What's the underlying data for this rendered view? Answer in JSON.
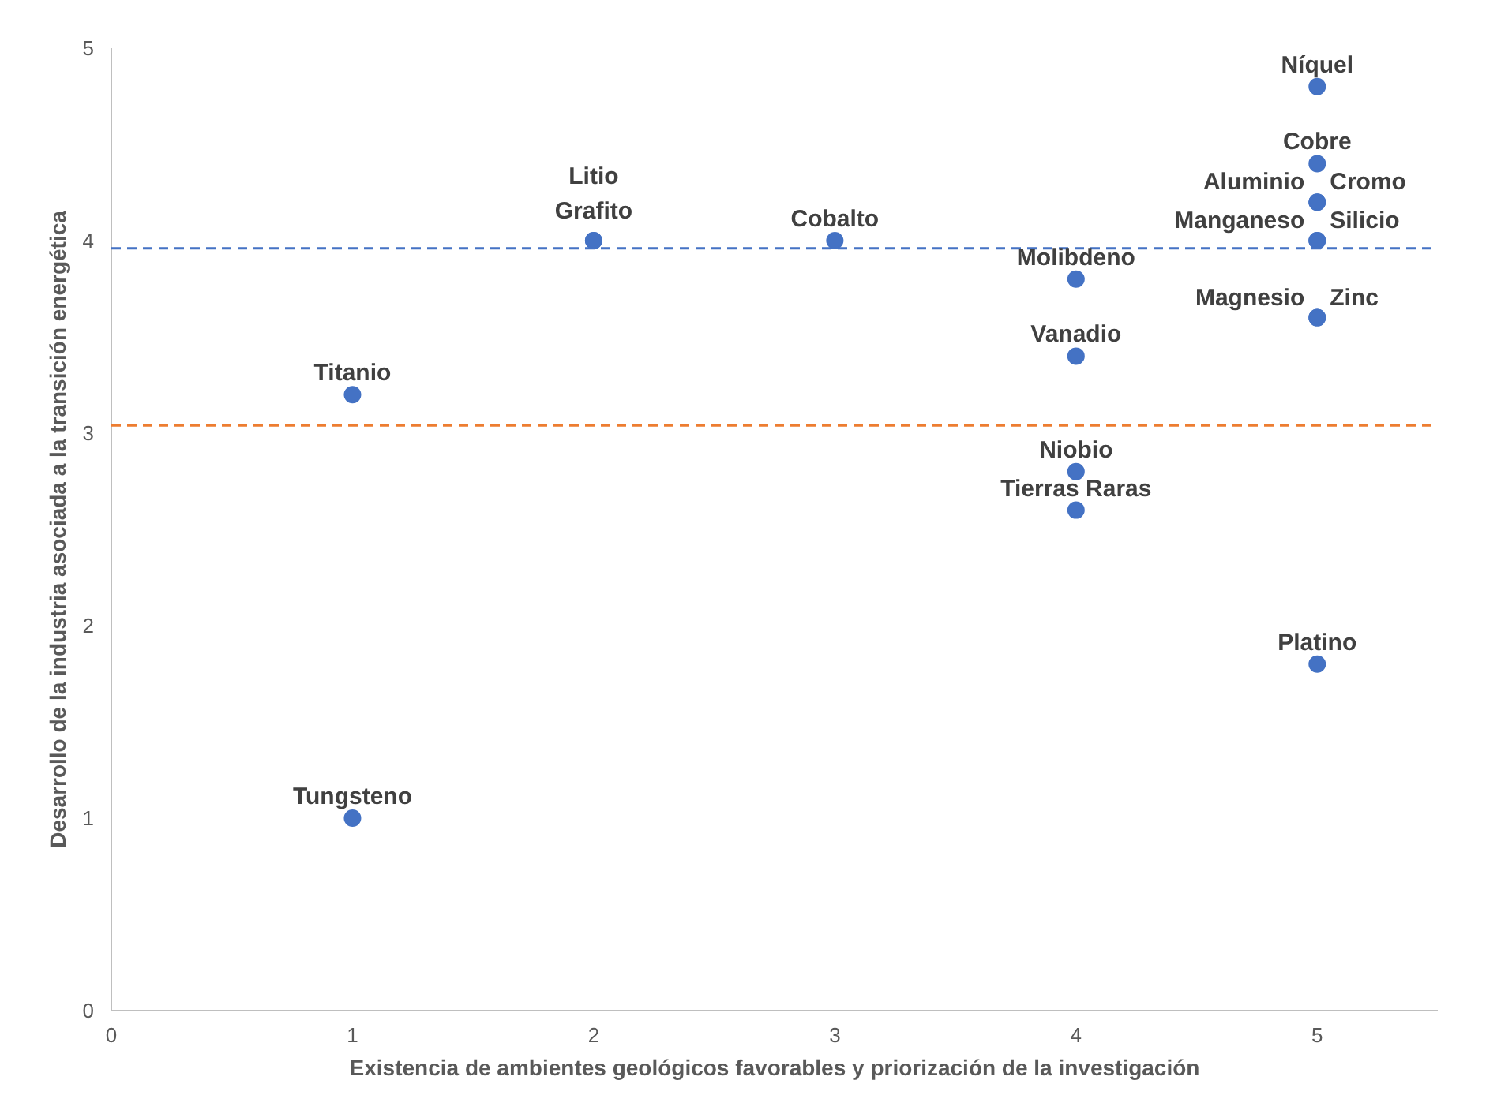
{
  "chart_data": {
    "type": "scatter",
    "xlabel": "Existencia de ambientes geológicos favorables y priorización de la investigación",
    "ylabel": "Desarrollo de la industria asociada a la transición energética",
    "series": [
      {
        "color": "#4472c4",
        "x": [
          1,
          1,
          2,
          2,
          3,
          4,
          4,
          4,
          4,
          5,
          5,
          5,
          5,
          5,
          5,
          5,
          5,
          5
        ],
        "values": [
          3.2,
          1,
          4,
          4,
          4,
          3.8,
          3.4,
          2.8,
          2.6,
          4.8,
          4.4,
          4.2,
          4.2,
          4.0,
          4.0,
          3.6,
          3.6,
          1.8
        ],
        "value_labels": [
          "Titanio",
          "Tungsteno",
          "Litio",
          "Grafito",
          "Cobalto",
          "Molibdeno",
          "Vanadio",
          "Niobio",
          "Tierras Raras",
          "Níquel",
          "Cobre",
          "Aluminio",
          "Cromo",
          "Manganeso",
          "Silicio",
          "Magnesio",
          "Zinc",
          "Platino"
        ]
      }
    ],
    "marker": "circle",
    "xlim": [
      0,
      5.5
    ],
    "ylim": [
      0,
      5
    ],
    "xticks": [
      0,
      1,
      2,
      3,
      4,
      5
    ],
    "yticks": [
      0,
      1,
      2,
      3,
      4,
      5
    ],
    "grid": false,
    "ref_lines": [
      {
        "axis": "y",
        "value": 3.96,
        "color": "#4472c4",
        "line_style": "dashed"
      },
      {
        "axis": "y",
        "value": 3.04,
        "color": "#ed7d31",
        "line_style": "dashed"
      }
    ]
  }
}
